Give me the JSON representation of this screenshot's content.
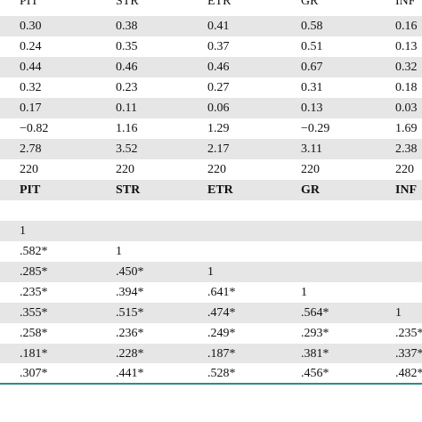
{
  "header": [
    "PIT",
    "STR",
    "ETR",
    "GR",
    "INF"
  ],
  "stats_rows": [
    [
      "0.30",
      "0.38",
      "0.41",
      "0.58",
      "0.16"
    ],
    [
      "0.24",
      "0.35",
      "0.37",
      "0.51",
      "0.13"
    ],
    [
      "0.44",
      "0.46",
      "0.46",
      "0.67",
      "0.32"
    ],
    [
      "0.32",
      "0.23",
      "0.27",
      "0.31",
      "0.18"
    ],
    [
      "0.17",
      "0.11",
      "0.06",
      "0.13",
      "0.03"
    ],
    [
      "−0.82",
      "1.16",
      "1.29",
      "−0.29",
      "1.69"
    ],
    [
      "2.78",
      "3.52",
      "2.17",
      "3.11",
      "2.38"
    ],
    [
      "220",
      "220",
      "220",
      "220",
      "220"
    ]
  ],
  "corr_header": [
    "PIT",
    "STR",
    "ETR",
    "GR",
    "INF"
  ],
  "corr_rows": [
    [
      "",
      "",
      "",
      "",
      ""
    ],
    [
      "1",
      "",
      "",
      "",
      ""
    ],
    [
      ".582*",
      "1",
      "",
      "",
      ""
    ],
    [
      ".285*",
      ".450*",
      "1",
      "",
      ""
    ],
    [
      ".235*",
      ".394*",
      ".641*",
      "1",
      ""
    ],
    [
      ".355*",
      ".515*",
      ".474*",
      ".564*",
      "1"
    ],
    [
      ".258*",
      ".236*",
      ".249*",
      ".293*",
      ".235*"
    ],
    [
      ".181*",
      ".228*",
      ".187*",
      ".381*",
      ".337*"
    ],
    [
      ".307*",
      ".441*",
      ".528*",
      ".456*",
      ".482*"
    ]
  ]
}
